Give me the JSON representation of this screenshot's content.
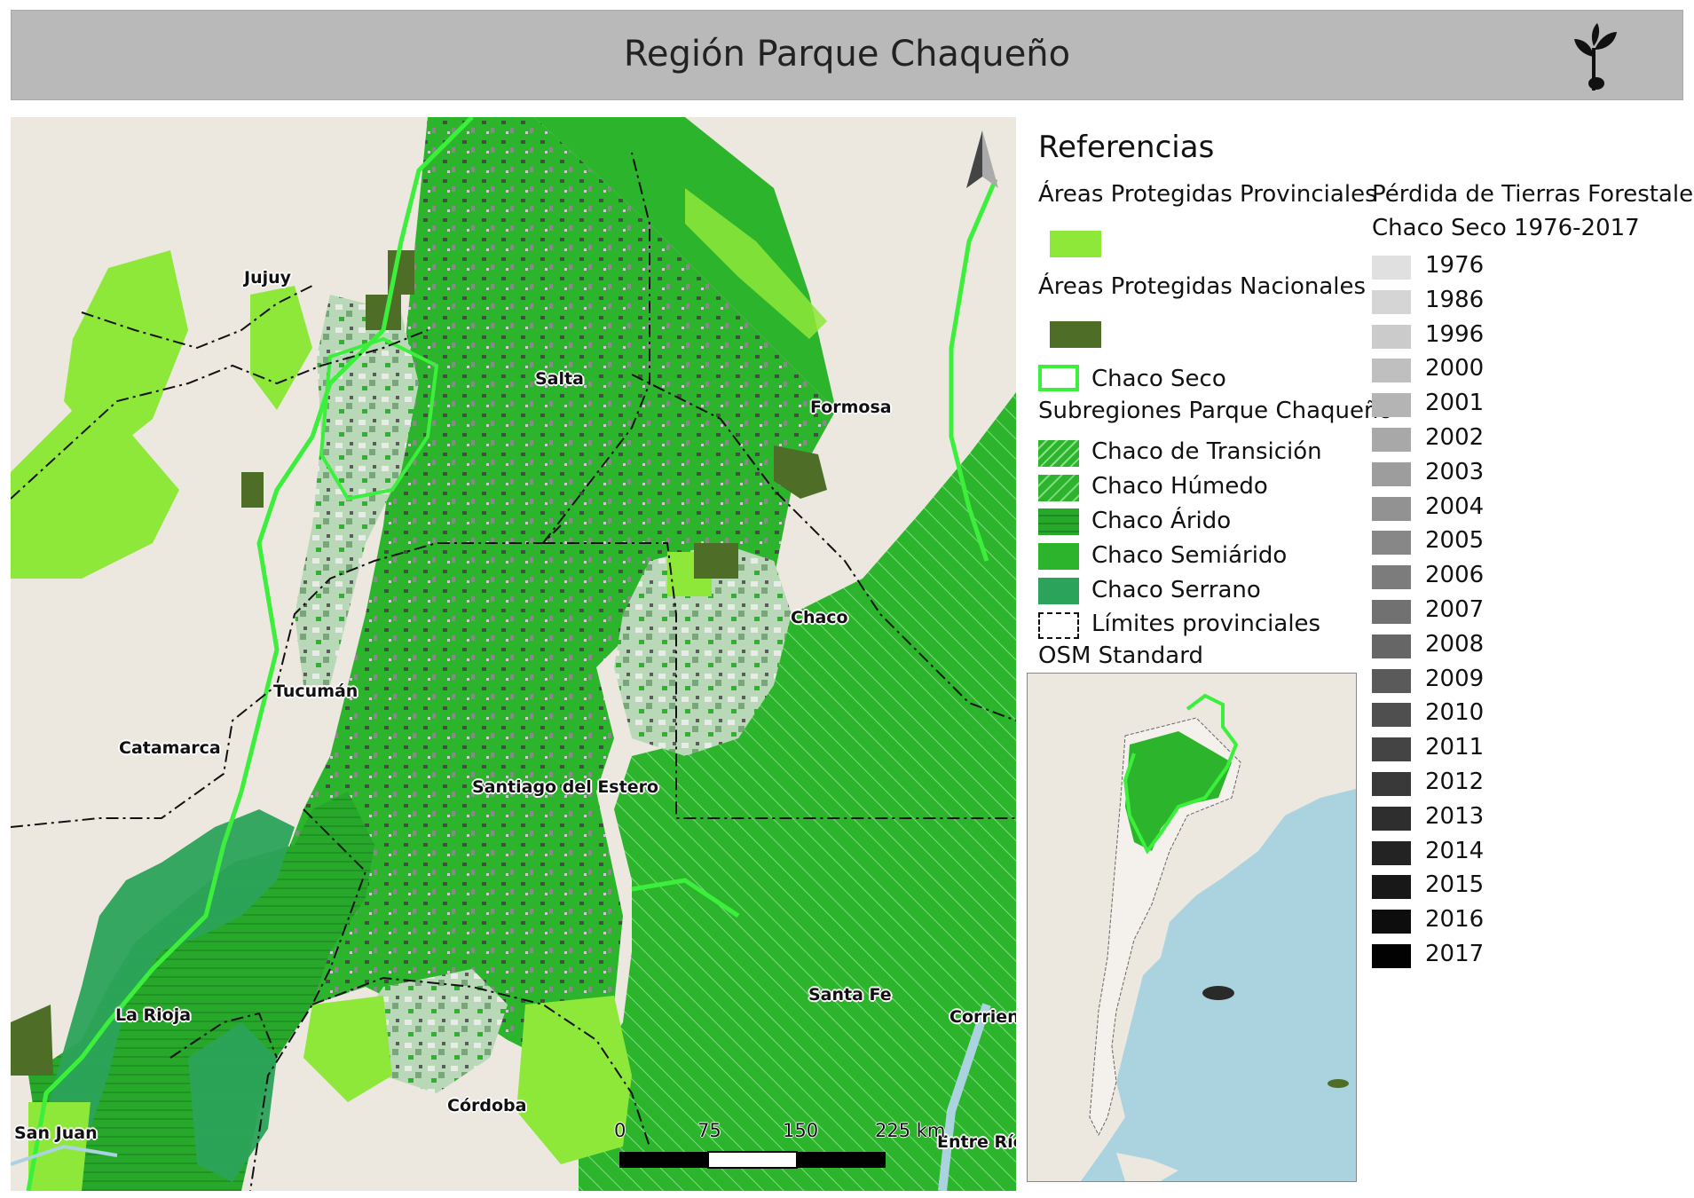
{
  "title": "Región Parque Chaqueño",
  "icons": {
    "logo": "sprout-icon",
    "north": "north-arrow-icon"
  },
  "map": {
    "labels": {
      "jujuy": "Jujuy",
      "salta": "Salta",
      "formosa": "Formosa",
      "chaco": "Chaco",
      "tucuman": "Tucumán",
      "catamarca": "Catamarca",
      "santiago": "Santiago del Estero",
      "santa_fe": "Santa Fe",
      "corrientes": "Corrien",
      "la_rioja": "La Rioja",
      "cordoba": "Córdoba",
      "san_juan": "San Juan",
      "entre_rios": "Entre Ríc"
    },
    "scale": {
      "labels": [
        "0",
        "75",
        "150",
        "225 km"
      ]
    },
    "colors": {
      "base": "#ece7df",
      "chaco_green": "#2cb52c",
      "provincial_areas": "#8ee83a",
      "national_areas": "#4e6e28",
      "chaco_seco_outline": "#3cef3c",
      "serrano": "#2ca35a"
    }
  },
  "legend": {
    "heading": "Referencias",
    "provincial_label": "Áreas Protegidas Provinciales",
    "national_label": "Áreas Protegidas Nacionales",
    "chaco_seco_label": "Chaco Seco",
    "subregions_label": "Subregiones Parque Chaqueño",
    "subregions": [
      {
        "label": "Chaco de Transición",
        "pattern": "diagonal-fine"
      },
      {
        "label": "Chaco Húmedo",
        "pattern": "diagonal"
      },
      {
        "label": "Chaco Árido",
        "pattern": "horizontal"
      },
      {
        "label": "Chaco Semiárido",
        "pattern": "solid"
      },
      {
        "label": "Chaco Serrano",
        "pattern": "solid-teal"
      }
    ],
    "limits_label": "Límites provinciales",
    "osm_label": "OSM Standard",
    "loss_title_1": "Pérdida de Tierras Forestales",
    "loss_title_2": "Chaco Seco 1976-2017",
    "years": [
      {
        "year": "1976",
        "color": "#e0e0e0"
      },
      {
        "year": "1986",
        "color": "#d5d5d5"
      },
      {
        "year": "1996",
        "color": "#cbcbcb"
      },
      {
        "year": "2000",
        "color": "#bfbfbf"
      },
      {
        "year": "2001",
        "color": "#b4b4b4"
      },
      {
        "year": "2002",
        "color": "#a8a8a8"
      },
      {
        "year": "2003",
        "color": "#9d9d9d"
      },
      {
        "year": "2004",
        "color": "#929292"
      },
      {
        "year": "2005",
        "color": "#878787"
      },
      {
        "year": "2006",
        "color": "#7c7c7c"
      },
      {
        "year": "2007",
        "color": "#717171"
      },
      {
        "year": "2008",
        "color": "#666666"
      },
      {
        "year": "2009",
        "color": "#5a5a5a"
      },
      {
        "year": "2010",
        "color": "#4f4f4f"
      },
      {
        "year": "2011",
        "color": "#444444"
      },
      {
        "year": "2012",
        "color": "#393939"
      },
      {
        "year": "2013",
        "color": "#2e2e2e"
      },
      {
        "year": "2014",
        "color": "#232323"
      },
      {
        "year": "2015",
        "color": "#181818"
      },
      {
        "year": "2016",
        "color": "#0d0d0d"
      },
      {
        "year": "2017",
        "color": "#020202"
      }
    ]
  }
}
